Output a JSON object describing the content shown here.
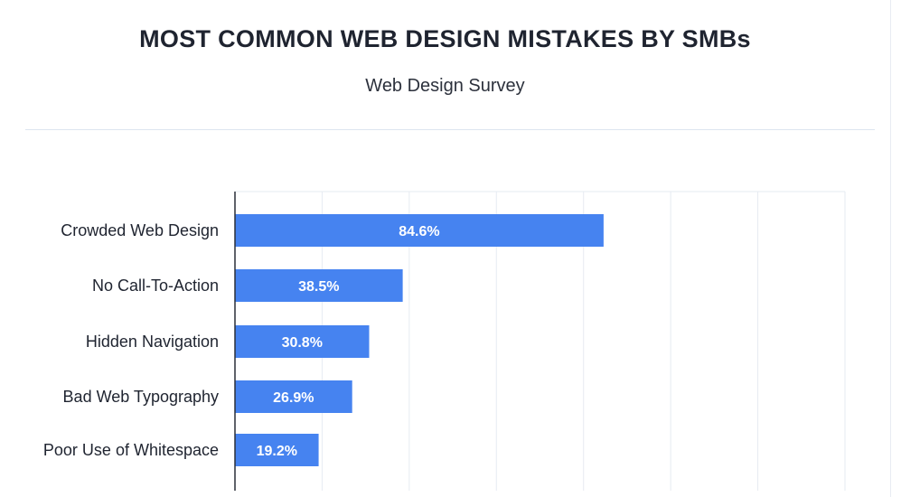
{
  "header": {
    "title": "MOST COMMON WEB DESIGN MISTAKES BY SMBs",
    "subtitle": "Web Design Survey"
  },
  "colors": {
    "bar": "#4683f0",
    "grid": "#e6ebf2",
    "axis": "#2a2f38"
  },
  "chart_data": {
    "type": "bar",
    "orientation": "horizontal",
    "title": "MOST COMMON WEB DESIGN MISTAKES BY SMBs",
    "subtitle": "Web Design Survey",
    "categories": [
      "Crowded Web Design",
      "No Call-To-Action",
      "Hidden Navigation",
      "Bad Web Typography",
      "Poor Use of Whitespace"
    ],
    "values": [
      84.6,
      38.5,
      30.8,
      26.9,
      19.2
    ],
    "value_labels": [
      "84.6%",
      "38.5%",
      "30.8%",
      "26.9%",
      "19.2%"
    ],
    "xlim": [
      0,
      140
    ],
    "grid": true,
    "xlabel": "",
    "ylabel": ""
  }
}
